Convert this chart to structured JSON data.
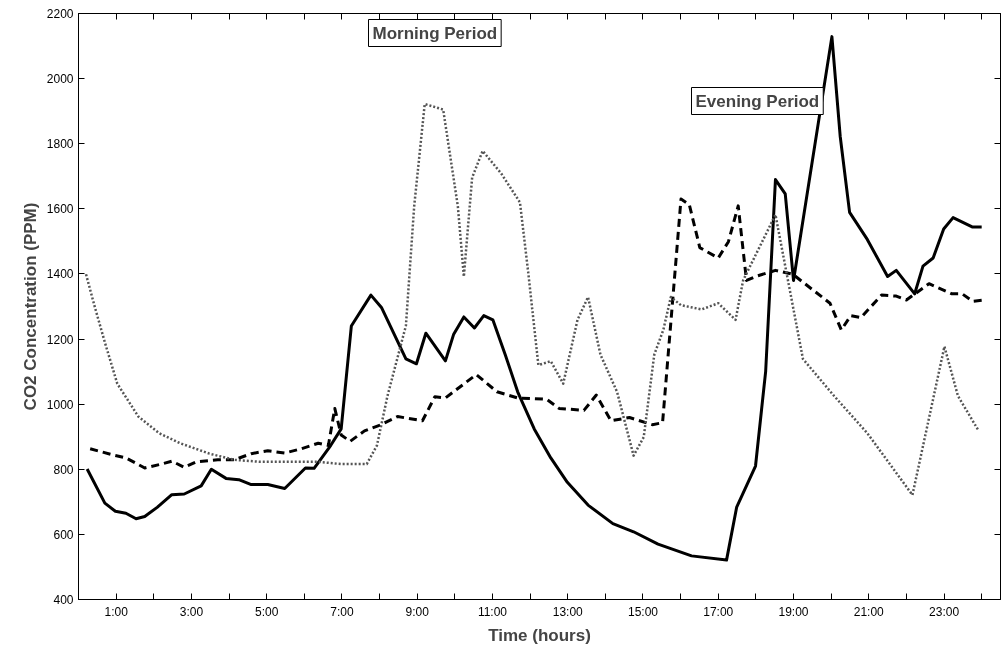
{
  "chart_data": {
    "type": "line",
    "xlabel": "Time (hours)",
    "ylabel": "CO2 Concentration (PPM)",
    "annotations": [
      "Morning Period",
      "Evening Period"
    ],
    "xlim": [
      0,
      24.5
    ],
    "ylim": [
      400,
      2200
    ],
    "xticks": [
      {
        "value": 1,
        "label": "1:00"
      },
      {
        "value": 2,
        "label": null
      },
      {
        "value": 3,
        "label": "3:00"
      },
      {
        "value": 4,
        "label": null
      },
      {
        "value": 5,
        "label": "5:00"
      },
      {
        "value": 6,
        "label": null
      },
      {
        "value": 7,
        "label": "7:00"
      },
      {
        "value": 8,
        "label": null
      },
      {
        "value": 9,
        "label": "9:00"
      },
      {
        "value": 10,
        "label": null
      },
      {
        "value": 11,
        "label": "11:00"
      },
      {
        "value": 12,
        "label": null
      },
      {
        "value": 13,
        "label": "13:00"
      },
      {
        "value": 14,
        "label": null
      },
      {
        "value": 15,
        "label": "15:00"
      },
      {
        "value": 16,
        "label": null
      },
      {
        "value": 17,
        "label": "17:00"
      },
      {
        "value": 18,
        "label": null
      },
      {
        "value": 19,
        "label": "19:00"
      },
      {
        "value": 20,
        "label": null
      },
      {
        "value": 21,
        "label": "21:00"
      },
      {
        "value": 22,
        "label": null
      },
      {
        "value": 23,
        "label": "23:00"
      },
      {
        "value": 24,
        "label": null
      }
    ],
    "yticks": [
      400,
      600,
      800,
      1000,
      1200,
      1400,
      1600,
      1800,
      2000,
      2200
    ],
    "grid": false,
    "marker": "none",
    "series": [
      {
        "color": "#000000",
        "line_style": "solid",
        "x": [
          0.23,
          0.7,
          0.98,
          1.26,
          1.53,
          1.76,
          2.09,
          2.48,
          2.81,
          3.26,
          3.53,
          3.92,
          4.26,
          4.59,
          5.03,
          5.48,
          6.03,
          6.26,
          6.7,
          6.98,
          7.25,
          7.77,
          8.05,
          8.7,
          8.98,
          9.23,
          9.75,
          9.97,
          10.24,
          10.52,
          10.77,
          11.01,
          11.34,
          11.67,
          12.11,
          12.55,
          12.99,
          13.54,
          14.2,
          14.75,
          15.4,
          16.29,
          17.22,
          17.49,
          17.99,
          18.26,
          18.52,
          18.78,
          19.0,
          20.02,
          20.24,
          20.49,
          20.96,
          21.5,
          21.73,
          22.22,
          22.44,
          22.71,
          22.99,
          23.24,
          23.76,
          24.0
        ],
        "values": [
          801,
          696,
          671,
          665,
          648,
          655,
          683,
          722,
          724,
          749,
          800,
          772,
          768,
          753,
          753,
          741,
          804,
          803,
          873,
          924,
          1240,
          1335,
          1297,
          1139,
          1124,
          1218,
          1133,
          1215,
          1268,
          1234,
          1272,
          1259,
          1152,
          1038,
          924,
          835,
          760,
          690,
          633,
          608,
          570,
          534,
          521,
          684,
          810,
          1101,
          1690,
          1646,
          1380,
          2129,
          1823,
          1589,
          1506,
          1392,
          1411,
          1339,
          1424,
          1449,
          1538,
          1573,
          1544,
          1544
        ]
      },
      {
        "color": "#000000",
        "line_style": "dashed",
        "x": [
          0.31,
          0.92,
          1.26,
          1.76,
          2.2,
          2.48,
          2.81,
          3.14,
          3.7,
          4.14,
          4.59,
          5.03,
          5.48,
          5.92,
          6.37,
          6.64,
          6.81,
          6.98,
          7.22,
          7.6,
          8.04,
          8.48,
          9.14,
          9.47,
          9.75,
          10.57,
          11.12,
          11.67,
          12.44,
          12.77,
          13.43,
          13.76,
          14.15,
          14.64,
          15.25,
          15.52,
          15.85,
          16.01,
          16.23,
          16.51,
          17.0,
          17.27,
          17.53,
          17.75,
          17.99,
          18.52,
          18.98,
          19.97,
          20.27,
          20.52,
          20.79,
          21.34,
          21.73,
          22.0,
          22.6,
          23.21,
          23.48,
          23.76,
          24.0
        ],
        "values": [
          863,
          844,
          835,
          804,
          816,
          825,
          806,
          823,
          829,
          829,
          848,
          857,
          850,
          863,
          880,
          873,
          987,
          905,
          886,
          918,
          937,
          962,
          949,
          1023,
          1019,
          1091,
          1038,
          1019,
          1015,
          987,
          981,
          1028,
          949,
          959,
          937,
          943,
          1405,
          1630,
          1613,
          1481,
          1449,
          1499,
          1609,
          1380,
          1392,
          1411,
          1399,
          1310,
          1228,
          1272,
          1266,
          1335,
          1332,
          1320,
          1370,
          1339,
          1339,
          1316,
          1319
        ]
      },
      {
        "color": "#555555",
        "line_style": "dotted",
        "x": [
          0.2,
          0.42,
          0.7,
          1.03,
          1.59,
          2.14,
          2.7,
          3.48,
          4.14,
          4.81,
          5.7,
          6.37,
          6.98,
          7.66,
          7.93,
          8.21,
          8.7,
          8.92,
          9.2,
          9.69,
          10.08,
          10.24,
          10.46,
          10.74,
          11.23,
          11.73,
          11.95,
          12.22,
          12.55,
          12.88,
          13.26,
          13.54,
          13.87,
          14.31,
          14.75,
          15.02,
          15.3,
          15.54,
          15.74,
          16.01,
          16.56,
          17.0,
          17.46,
          17.66,
          18.52,
          19.25,
          20.08,
          20.96,
          22.16,
          23.01,
          23.37,
          23.92
        ],
        "values": [
          1399,
          1304,
          1190,
          1063,
          962,
          911,
          880,
          848,
          829,
          823,
          823,
          823,
          816,
          816,
          873,
          1025,
          1241,
          1608,
          1922,
          1905,
          1608,
          1392,
          1696,
          1778,
          1709,
          1620,
          1405,
          1120,
          1132,
          1063,
          1259,
          1329,
          1152,
          1038,
          842,
          899,
          1152,
          1228,
          1329,
          1304,
          1291,
          1310,
          1259,
          1380,
          1582,
          1139,
          1025,
          911,
          721,
          1177,
          1025,
          918
        ]
      }
    ]
  }
}
